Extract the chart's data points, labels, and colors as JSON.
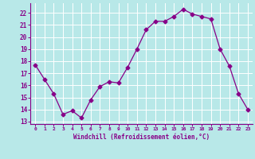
{
  "x": [
    0,
    1,
    2,
    3,
    4,
    5,
    6,
    7,
    8,
    9,
    10,
    11,
    12,
    13,
    14,
    15,
    16,
    17,
    18,
    19,
    20,
    21,
    22,
    23
  ],
  "y": [
    17.7,
    16.5,
    15.3,
    13.6,
    13.9,
    13.3,
    14.8,
    15.9,
    16.3,
    16.2,
    17.5,
    19.0,
    20.6,
    21.3,
    21.3,
    21.7,
    22.3,
    21.9,
    21.7,
    21.5,
    19.0,
    17.6,
    15.3,
    14.0
  ],
  "line_color": "#880088",
  "marker": "D",
  "marker_size": 2.5,
  "bg_color": "#b8e8e8",
  "grid_color": "#ffffff",
  "xlabel": "Windchill (Refroidissement éolien,°C)",
  "ylabel_ticks": [
    13,
    14,
    15,
    16,
    17,
    18,
    19,
    20,
    21,
    22
  ],
  "ylim": [
    12.8,
    22.8
  ],
  "xlim": [
    -0.5,
    23.5
  ],
  "tick_color": "#880088",
  "axis_color": "#880088"
}
